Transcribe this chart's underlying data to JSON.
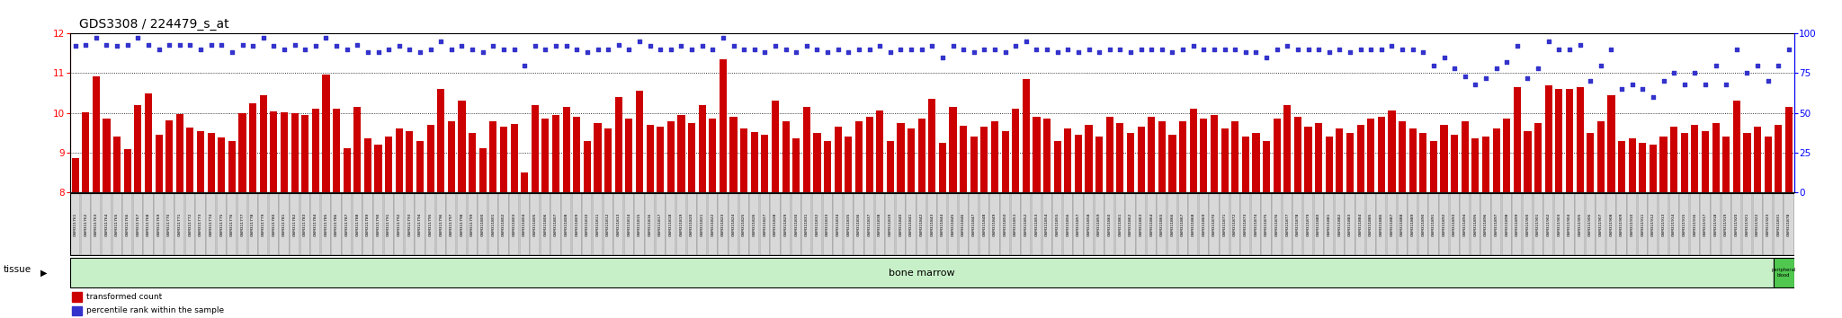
{
  "title": "GDS3308 / 224479_s_at",
  "title_fontsize": 10,
  "ylim_left": [
    8,
    12
  ],
  "ylim_right": [
    0,
    100
  ],
  "yticks_left": [
    8,
    9,
    10,
    11,
    12
  ],
  "yticks_right": [
    0,
    25,
    50,
    75,
    100
  ],
  "bar_color": "#cc0000",
  "dot_color": "#3333cc",
  "tissue_label": "tissue",
  "tissue_bm_label": "bone marrow",
  "tissue_pb_label": "peripheral\nblood",
  "legend_items": [
    "transformed count",
    "percentile rank within the sample"
  ],
  "legend_colors": [
    "#cc0000",
    "#3333cc"
  ],
  "samples": [
    "GSM311761",
    "GSM311762",
    "GSM311763",
    "GSM311764",
    "GSM311765",
    "GSM311766",
    "GSM311767",
    "GSM311768",
    "GSM311769",
    "GSM311770",
    "GSM311771",
    "GSM311772",
    "GSM311773",
    "GSM311774",
    "GSM311775",
    "GSM311776",
    "GSM311777",
    "GSM311778",
    "GSM311779",
    "GSM311780",
    "GSM311781",
    "GSM311782",
    "GSM311783",
    "GSM311784",
    "GSM311785",
    "GSM311786",
    "GSM311787",
    "GSM311788",
    "GSM311789",
    "GSM311790",
    "GSM311791",
    "GSM311792",
    "GSM311793",
    "GSM311794",
    "GSM311795",
    "GSM311796",
    "GSM311797",
    "GSM311798",
    "GSM311799",
    "GSM311800",
    "GSM311801",
    "GSM311802",
    "GSM311803",
    "GSM311804",
    "GSM311805",
    "GSM311806",
    "GSM311807",
    "GSM311808",
    "GSM311809",
    "GSM311810",
    "GSM311811",
    "GSM311812",
    "GSM311813",
    "GSM311814",
    "GSM311815",
    "GSM311816",
    "GSM311817",
    "GSM311818",
    "GSM311819",
    "GSM311820",
    "GSM311821",
    "GSM311822",
    "GSM311823",
    "GSM311824",
    "GSM311825",
    "GSM311826",
    "GSM311827",
    "GSM311828",
    "GSM311829",
    "GSM311830",
    "GSM311831",
    "GSM311832",
    "GSM311833",
    "GSM311834",
    "GSM311835",
    "GSM311836",
    "GSM311837",
    "GSM311838",
    "GSM311839",
    "GSM311840",
    "GSM311841",
    "GSM311842",
    "GSM311843",
    "GSM311844",
    "GSM311845",
    "GSM311846",
    "GSM311847",
    "GSM311848",
    "GSM311849",
    "GSM311850",
    "GSM311851",
    "GSM311852",
    "GSM311853",
    "GSM311854",
    "GSM311855",
    "GSM311856",
    "GSM311857",
    "GSM311858",
    "GSM311859",
    "GSM311860",
    "GSM311861",
    "GSM311862",
    "GSM311863",
    "GSM311864",
    "GSM311865",
    "GSM311866",
    "GSM311867",
    "GSM311868",
    "GSM311869",
    "GSM311870",
    "GSM311871",
    "GSM311872",
    "GSM311873",
    "GSM311874",
    "GSM311875",
    "GSM311876",
    "GSM311877",
    "GSM311878",
    "GSM311879",
    "GSM311880",
    "GSM311881",
    "GSM311882",
    "GSM311883",
    "GSM311884",
    "GSM311885",
    "GSM311886",
    "GSM311887",
    "GSM311888",
    "GSM311889",
    "GSM311890",
    "GSM311891",
    "GSM311892",
    "GSM311893",
    "GSM311894",
    "GSM311895",
    "GSM311896",
    "GSM311897",
    "GSM311898",
    "GSM311899",
    "GSM311900",
    "GSM311901",
    "GSM311902",
    "GSM311903",
    "GSM311904",
    "GSM311905",
    "GSM311906",
    "GSM311907",
    "GSM311908",
    "GSM311909",
    "GSM311910",
    "GSM311911",
    "GSM311912",
    "GSM311913",
    "GSM311914",
    "GSM311915",
    "GSM311916",
    "GSM311917",
    "GSM311918",
    "GSM311919",
    "GSM311920",
    "GSM311921",
    "GSM311922",
    "GSM311923",
    "GSM311831",
    "GSM311878"
  ],
  "bar_values": [
    8.87,
    10.02,
    10.91,
    9.85,
    9.41,
    9.09,
    10.2,
    10.48,
    9.46,
    9.82,
    9.96,
    9.62,
    9.55,
    9.5,
    9.39,
    9.3,
    10.0,
    10.25,
    10.45,
    10.04,
    10.02,
    10.0,
    9.95,
    10.1,
    10.96,
    10.1,
    9.1,
    10.15,
    9.35,
    9.2,
    9.4,
    9.6,
    9.55,
    9.3,
    9.7,
    10.6,
    9.8,
    10.3,
    9.5,
    9.1,
    9.8,
    9.65,
    9.72,
    8.5,
    10.2,
    9.85,
    9.95,
    10.15,
    9.9,
    9.3,
    9.75,
    9.6,
    10.4,
    9.85,
    10.55,
    9.7,
    9.65,
    9.8,
    9.95,
    9.75,
    10.2,
    9.85,
    11.35,
    9.9,
    9.6,
    9.52,
    9.45,
    10.3,
    9.8,
    9.35,
    10.15,
    9.5,
    9.3,
    9.65,
    9.4,
    9.8,
    9.9,
    10.05,
    9.3,
    9.75,
    9.6,
    9.85,
    10.35,
    9.25,
    10.15,
    9.68,
    9.4,
    9.65,
    9.8,
    9.55,
    10.1,
    10.85,
    9.9,
    9.85,
    9.3,
    9.6,
    9.45,
    9.7,
    9.4,
    9.9,
    9.75,
    9.5,
    9.65,
    9.9,
    9.8,
    9.45,
    9.8,
    10.1,
    9.85,
    9.95,
    9.6,
    9.8,
    9.4,
    9.5,
    9.3,
    9.85,
    10.2,
    9.9,
    9.65,
    9.75,
    9.4,
    9.6,
    9.5,
    9.7,
    9.85,
    9.9,
    10.05,
    9.8,
    9.6,
    9.5,
    9.3,
    9.7,
    9.45,
    9.8,
    9.35,
    9.4,
    9.6,
    9.85,
    10.65,
    9.55,
    9.75,
    10.7,
    10.6,
    10.6,
    10.65,
    9.5,
    9.8,
    10.45,
    9.3,
    9.35,
    9.25,
    9.2,
    9.4,
    9.65,
    9.5,
    9.7,
    9.55,
    9.75,
    9.4,
    10.3,
    9.5,
    9.65,
    9.4,
    9.7,
    10.15
  ],
  "dot_values": [
    92,
    93,
    97,
    93,
    92,
    93,
    97,
    93,
    90,
    93,
    93,
    93,
    90,
    93,
    93,
    88,
    93,
    92,
    97,
    92,
    90,
    93,
    90,
    92,
    97,
    92,
    90,
    93,
    88,
    88,
    90,
    92,
    90,
    88,
    90,
    95,
    90,
    92,
    90,
    88,
    92,
    90,
    90,
    80,
    92,
    90,
    92,
    92,
    90,
    88,
    90,
    90,
    93,
    90,
    95,
    92,
    90,
    90,
    92,
    90,
    92,
    90,
    97,
    92,
    90,
    90,
    88,
    92,
    90,
    88,
    92,
    90,
    88,
    90,
    88,
    90,
    90,
    92,
    88,
    90,
    90,
    90,
    92,
    85,
    92,
    90,
    88,
    90,
    90,
    88,
    92,
    95,
    90,
    90,
    88,
    90,
    88,
    90,
    88,
    90,
    90,
    88,
    90,
    90,
    90,
    88,
    90,
    92,
    90,
    90,
    90,
    90,
    88,
    88,
    85,
    90,
    92,
    90,
    90,
    90,
    88,
    90,
    88,
    90,
    90,
    90,
    92,
    90,
    90,
    88,
    80,
    85,
    78,
    73,
    68,
    72,
    78,
    82,
    92,
    72,
    78,
    95,
    90,
    90,
    93,
    70,
    80,
    90,
    65,
    68,
    65,
    60,
    70,
    75,
    68,
    75,
    68,
    80,
    68,
    90,
    75,
    80,
    70,
    80,
    90
  ],
  "bm_count": 163,
  "pb_count": 2,
  "bm_color": "#c8f0c8",
  "pb_color": "#50c850"
}
